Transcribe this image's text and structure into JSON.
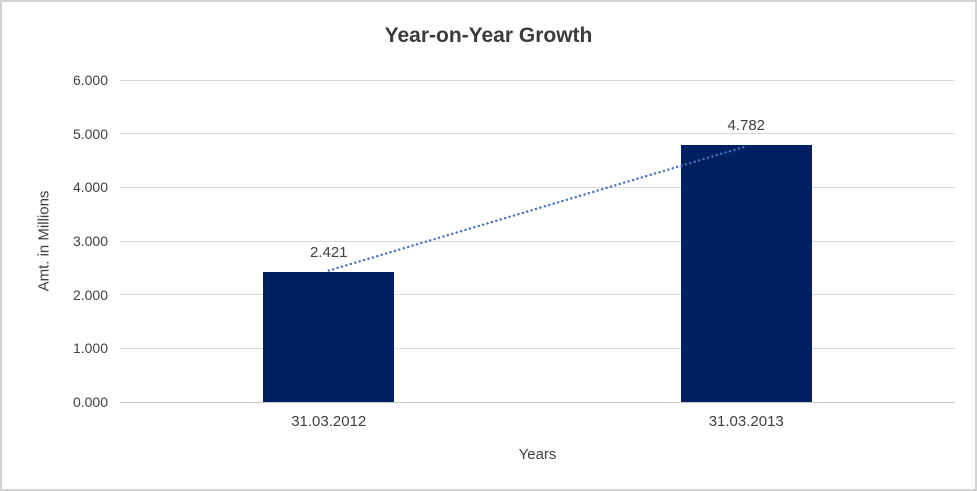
{
  "window": {
    "background": "#ffffff",
    "border_color": "#d2d2d2"
  },
  "chart_data": {
    "type": "bar",
    "title": "Year-on-Year Growth",
    "categories": [
      "31.03.2012",
      "31.03.2013"
    ],
    "values": [
      2.421,
      4.782
    ],
    "data_labels": [
      "2.421",
      "4.782"
    ],
    "xlabel": "Years",
    "ylabel": "Amt. in Millions",
    "ylim": [
      0,
      6
    ],
    "ytick_values": [
      0,
      1,
      2,
      3,
      4,
      5,
      6
    ],
    "ytick_labels": [
      "0.000",
      "1.000",
      "2.000",
      "3.000",
      "4.000",
      "5.000",
      "6.000"
    ],
    "grid": "horizontal gridlines on",
    "legend": "none",
    "bar_color": "#002060",
    "text_color": "#404040",
    "gridline_color": "#d9d9d9",
    "trendline": {
      "type": "linear",
      "style": "dotted",
      "color": "#4472C4",
      "connects": [
        2.421,
        4.782
      ]
    }
  }
}
